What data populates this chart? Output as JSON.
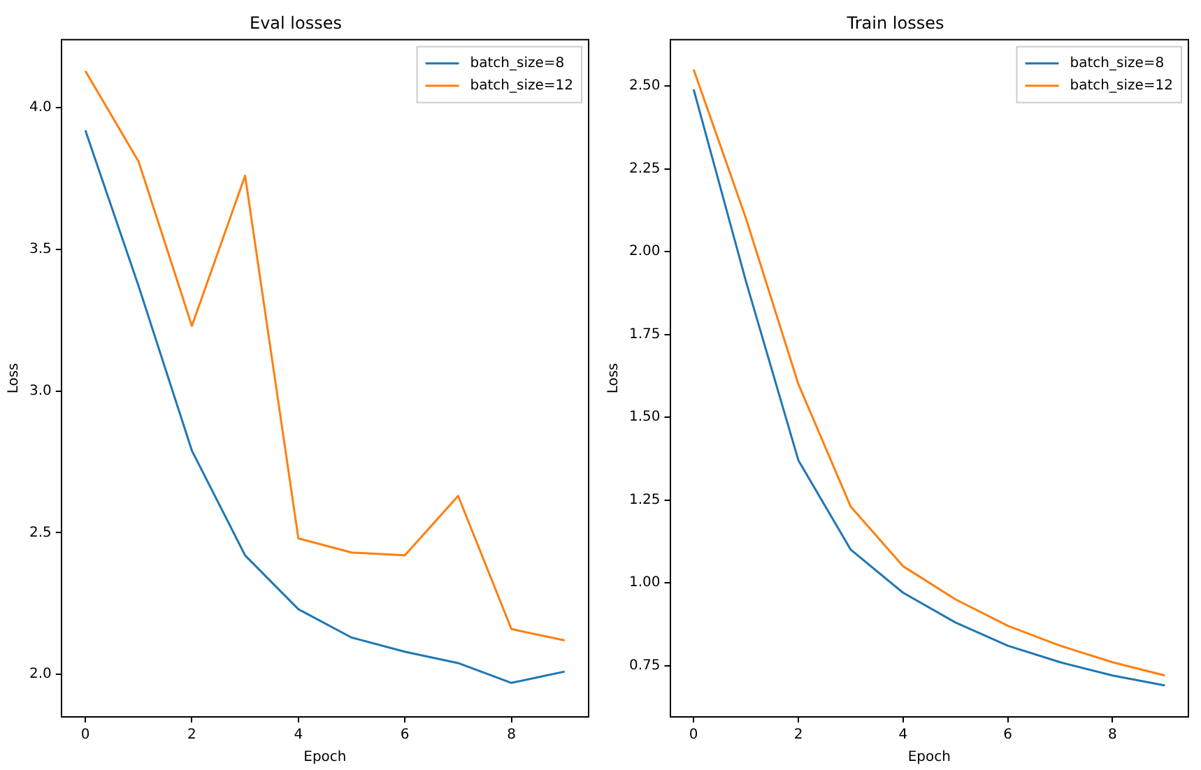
{
  "chart_data": [
    {
      "type": "line",
      "title": "Eval losses",
      "xlabel": "Epoch",
      "ylabel": "Loss",
      "x": [
        0,
        1,
        2,
        3,
        4,
        5,
        6,
        7,
        8,
        9
      ],
      "xlim": [
        -0.45,
        9.45
      ],
      "xticks": [
        0,
        2,
        4,
        6,
        8
      ],
      "ylim": [
        1.85,
        4.24
      ],
      "yticks": [
        {
          "value": 2.0,
          "label": "2.0"
        },
        {
          "value": 2.5,
          "label": "2.5"
        },
        {
          "value": 3.0,
          "label": "3.0"
        },
        {
          "value": 3.5,
          "label": "3.5"
        },
        {
          "value": 4.0,
          "label": "4.0"
        }
      ],
      "grid": false,
      "legend": "top right",
      "marker": "none",
      "line_style": "solid",
      "series": [
        {
          "name": "batch_size=8",
          "color": "#1f77b4",
          "values": [
            3.92,
            3.37,
            2.79,
            2.42,
            2.23,
            2.13,
            2.08,
            2.04,
            1.97,
            2.01
          ]
        },
        {
          "name": "batch_size=12",
          "color": "#ff7f0e",
          "values": [
            4.13,
            3.81,
            3.23,
            3.76,
            2.48,
            2.43,
            2.42,
            2.63,
            2.16,
            2.12
          ]
        }
      ]
    },
    {
      "type": "line",
      "title": "Train losses",
      "xlabel": "Epoch",
      "ylabel": "Loss",
      "x": [
        0,
        1,
        2,
        3,
        4,
        5,
        6,
        7,
        8,
        9
      ],
      "xlim": [
        -0.45,
        9.45
      ],
      "xticks": [
        0,
        2,
        4,
        6,
        8
      ],
      "ylim": [
        0.595,
        2.64
      ],
      "yticks": [
        {
          "value": 0.75,
          "label": "0.75"
        },
        {
          "value": 1.0,
          "label": "1.00"
        },
        {
          "value": 1.25,
          "label": "1.25"
        },
        {
          "value": 1.5,
          "label": "1.50"
        },
        {
          "value": 1.75,
          "label": "1.75"
        },
        {
          "value": 2.0,
          "label": "2.00"
        },
        {
          "value": 2.25,
          "label": "2.25"
        },
        {
          "value": 2.5,
          "label": "2.50"
        }
      ],
      "grid": false,
      "legend": "top right",
      "marker": "none",
      "line_style": "solid",
      "series": [
        {
          "name": "batch_size=8",
          "color": "#1f77b4",
          "values": [
            2.49,
            1.91,
            1.37,
            1.1,
            0.97,
            0.88,
            0.81,
            0.76,
            0.72,
            0.69
          ]
        },
        {
          "name": "batch_size=12",
          "color": "#ff7f0e",
          "values": [
            2.55,
            2.1,
            1.6,
            1.23,
            1.05,
            0.95,
            0.87,
            0.81,
            0.76,
            0.72
          ]
        }
      ]
    }
  ]
}
